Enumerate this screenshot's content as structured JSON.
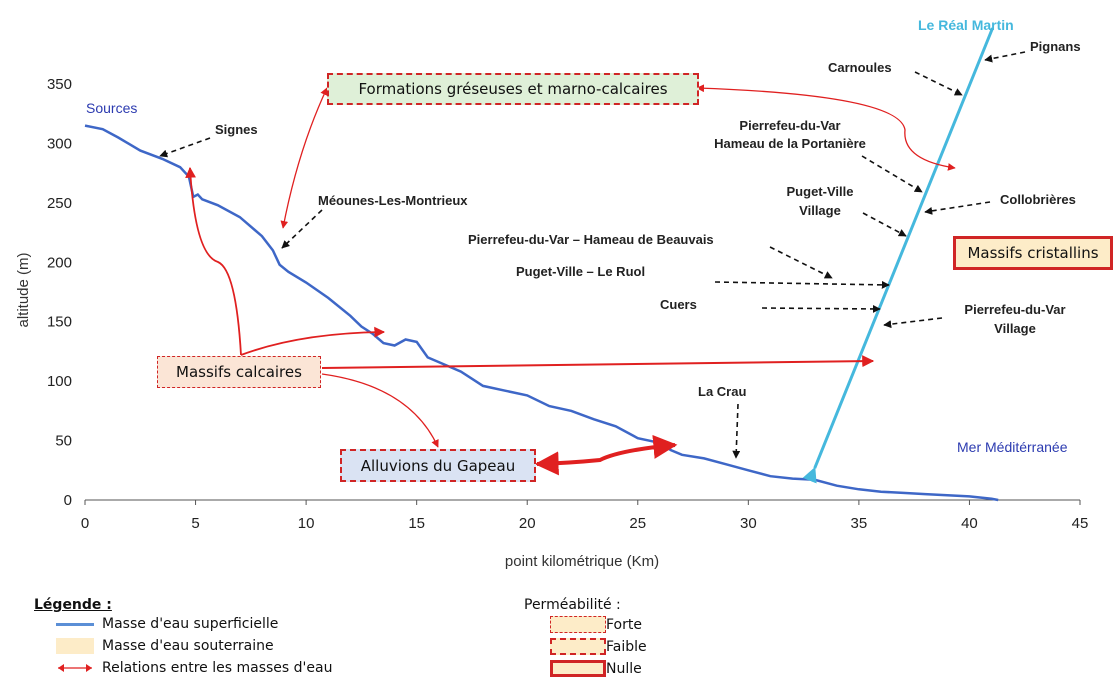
{
  "chart_data": {
    "type": "line",
    "xlabel": "point kilométrique (Km)",
    "ylabel": "altitude (m)",
    "xlim": [
      0,
      45
    ],
    "ylim": [
      0,
      350
    ],
    "xticks": [
      0,
      5,
      10,
      15,
      20,
      25,
      30,
      35,
      40,
      45
    ],
    "yticks": [
      0,
      50,
      100,
      150,
      200,
      250,
      300,
      350
    ],
    "grid": false,
    "series": [
      {
        "color": "#3e67c7",
        "x": [
          0,
          0.8,
          1.5,
          2.5,
          3.5,
          4.3,
          4.7,
          4.9,
          5.1,
          5.3,
          6,
          7,
          8,
          8.5,
          8.8,
          9.2,
          10,
          11,
          12,
          12.5,
          13,
          13.5,
          14,
          14.5,
          15,
          15.5,
          16,
          17,
          18,
          19,
          20,
          21,
          22,
          23,
          24,
          25,
          26,
          26.5,
          27,
          28,
          29,
          30,
          31,
          32,
          33,
          34,
          35,
          36,
          37,
          38,
          39,
          40,
          41,
          41.3
        ],
        "values": [
          315,
          312,
          305,
          294,
          287,
          280,
          272,
          255,
          257,
          253,
          248,
          238,
          222,
          210,
          198,
          192,
          183,
          170,
          155,
          146,
          140,
          132,
          130,
          135,
          133,
          120,
          116,
          108,
          96,
          92,
          88,
          79,
          75,
          68,
          62,
          52,
          48,
          42,
          38,
          35,
          30,
          25,
          20,
          18,
          17,
          12,
          9,
          7,
          6,
          5,
          4,
          3,
          1,
          0
        ]
      },
      {
        "name": "Le Réal Martin",
        "color": "#45b8dd",
        "x": [
          33.0,
          41.0
        ],
        "values": [
          20,
          395
        ]
      }
    ],
    "annotations": {
      "endpoints": {
        "source": "Sources",
        "sea": "Mer Méditérranée",
        "river": "Le Réal Martin"
      },
      "places": [
        "Signes",
        "Méounes-Les-Montrieux",
        "Carnoules",
        "Pignans",
        "Pierrefeu-du-Var",
        "Hameau de la Portanière",
        "Puget-Ville",
        "Village",
        "Collobrières",
        "Pierrefeu-du-Var – Hameau de Beauvais",
        "Puget-Ville – Le Ruol",
        "Cuers",
        "Pierrefeu-du-Var",
        "Village",
        "La Crau"
      ],
      "aquifers": [
        "Formations gréseuses et marno-calcaires",
        "Massifs cristallins",
        "Massifs calcaires",
        "Alluvions du Gapeau"
      ]
    }
  },
  "legend": {
    "title": "Légende :",
    "items": [
      "Masse d'eau superficielle",
      "Masse d'eau souterraine",
      "Relations entre les masses d'eau"
    ],
    "permeability_title": "Perméabilité :",
    "permeability_items": [
      "Forte",
      "Faible",
      "Nulle"
    ]
  },
  "colors": {
    "surface_water": "#3e67c7",
    "real_martin": "#45b8dd",
    "relation_arrow": "#e02020",
    "box_green": "#dff0d8",
    "box_peach": "#fbe5d6",
    "box_blue": "#dae3f3",
    "box_cream": "#fdecc8"
  }
}
